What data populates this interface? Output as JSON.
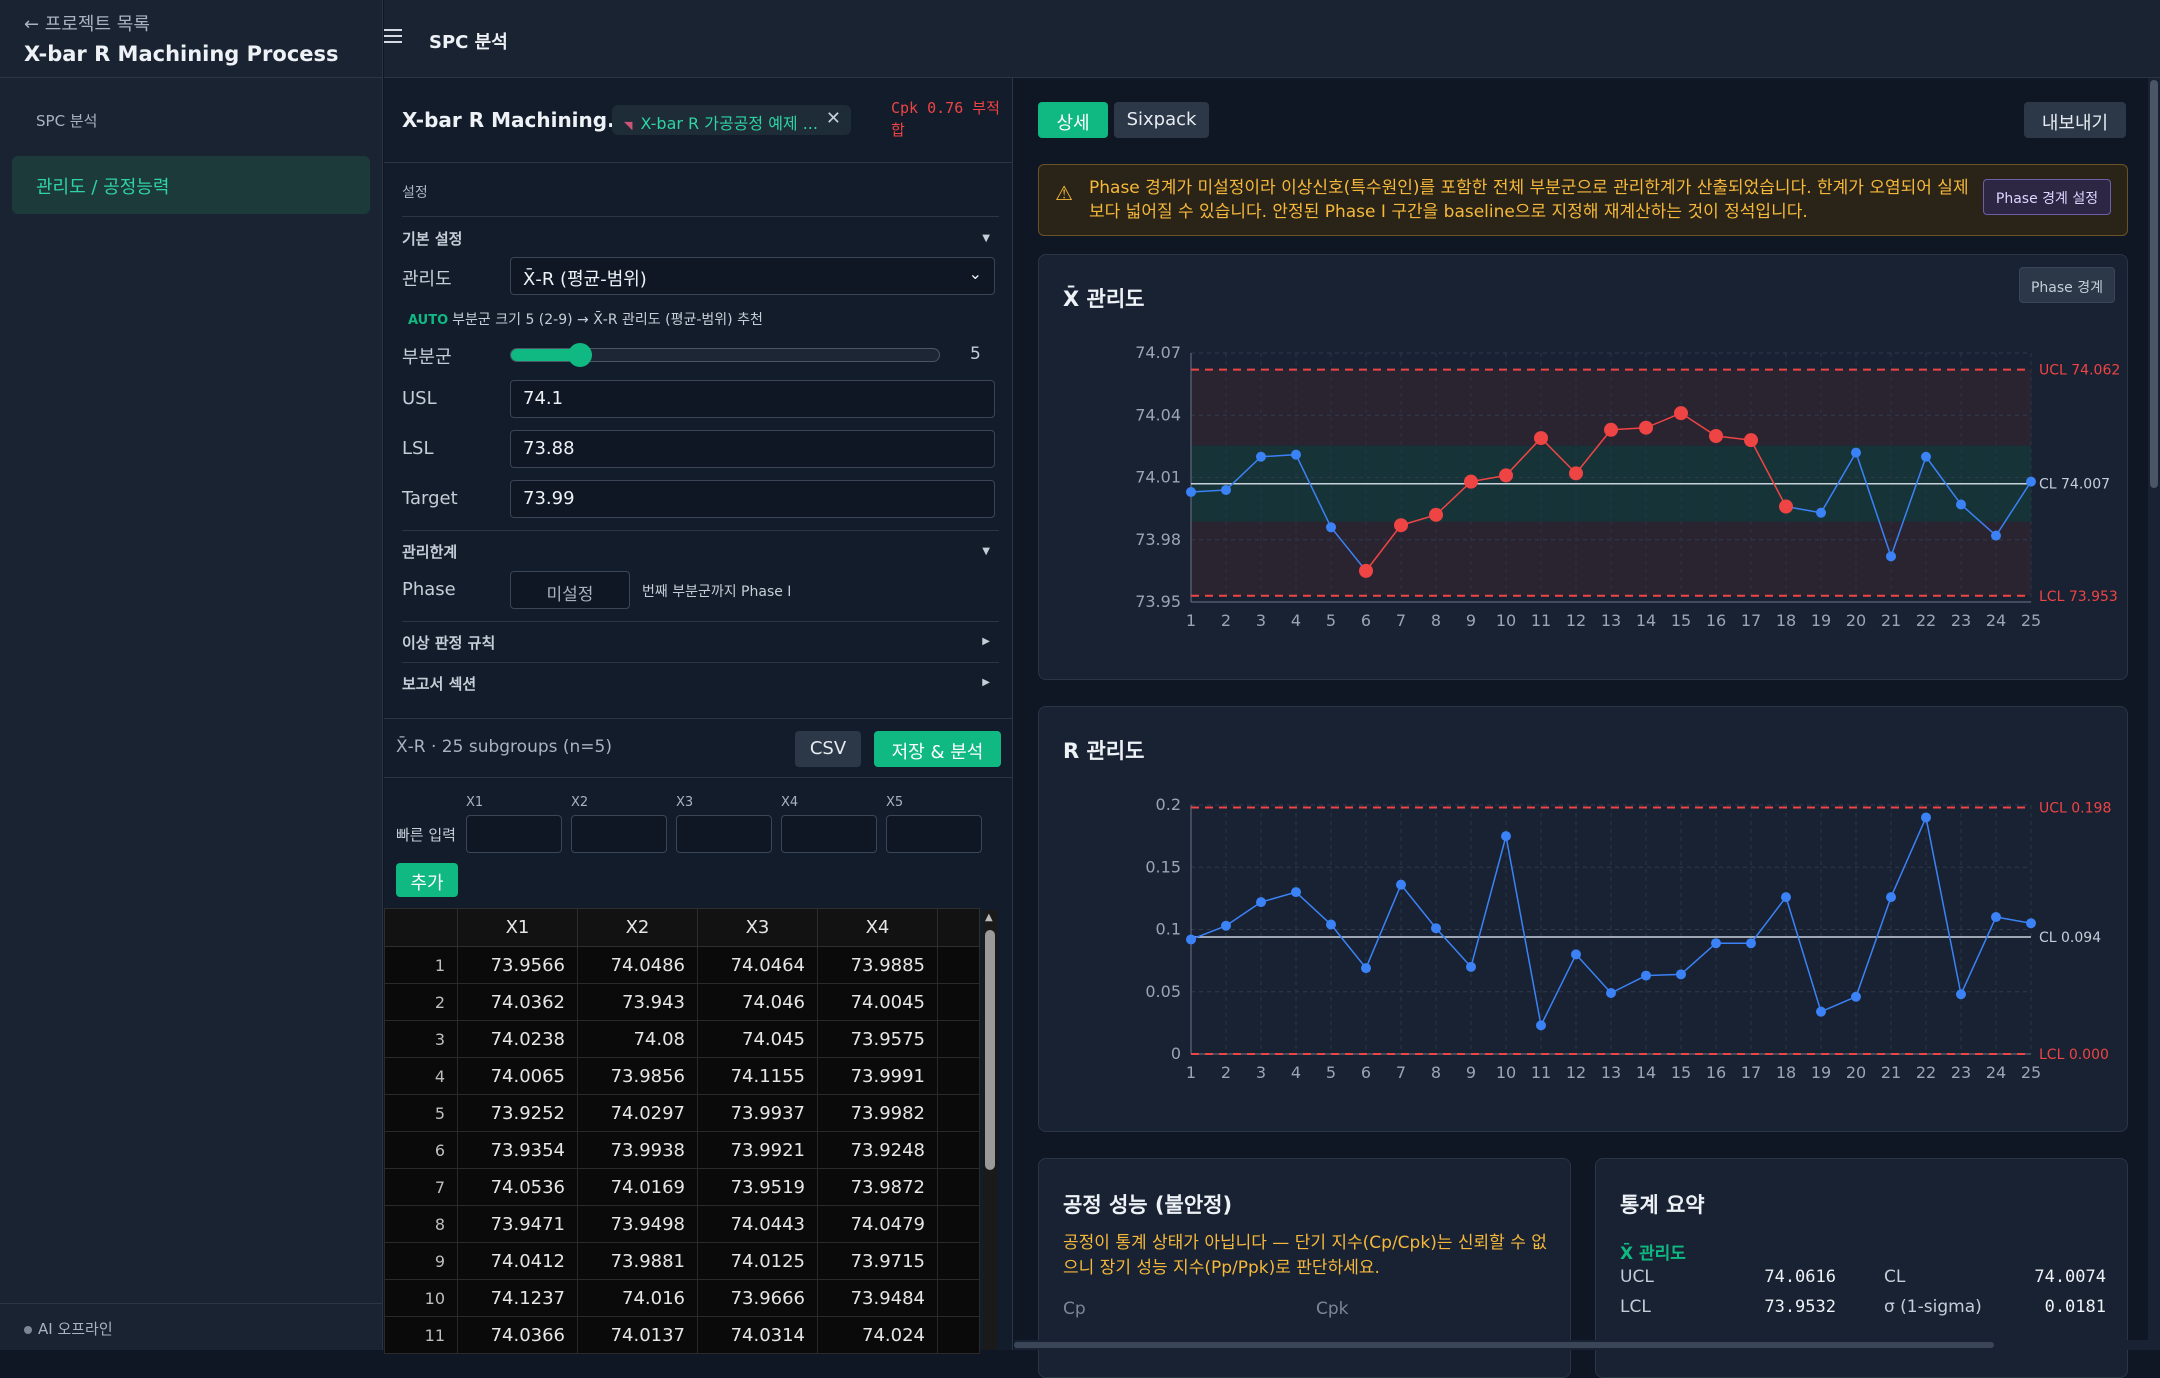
{
  "sidebar": {
    "back_label": "← 프로젝트 목록",
    "project_title": "X-bar R Machining Process",
    "section_label": "SPC 분석",
    "active_item": "관리도 / 공정능력",
    "ai_status": "AI 오프라인"
  },
  "topbar": {
    "title": "SPC 분석",
    "menu_icon": "hamburger-icon"
  },
  "config": {
    "dataset_title": "X-bar R Machining...",
    "dataset_chip": "X-bar R 가공공정 예제 ...",
    "cpk_badge": "Cpk 0.76 부적합",
    "settings_label": "설정",
    "basic_settings": "기본 설정",
    "chart_label": "관리도",
    "chart_value": "X̄-R (평균-범위)",
    "auto_tag": "AUTO",
    "auto_text": "부분군 크기 5 (2-9) → X̄-R 관리도 (평균-범위) 추천",
    "subgroup_label": "부분군",
    "subgroup_value": "5",
    "subgroup_fraction": 0.16,
    "usl_label": "USL",
    "usl_value": "74.1",
    "lsl_label": "LSL",
    "lsl_value": "73.88",
    "target_label": "Target",
    "target_value": "73.99",
    "limits_label": "관리한계",
    "phase_label": "Phase",
    "phase_placeholder": "미설정",
    "phase_suffix": "번째 부분군까지 Phase I",
    "rules_label": "이상 판정 규칙",
    "report_label": "보고서 섹션"
  },
  "data": {
    "info": "X̄-R · 25 subgroups (n=5)",
    "csv_button": "CSV",
    "save_button": "저장 & 분석",
    "quick_label": "빠른 입력",
    "quick_fields": [
      "X1",
      "X2",
      "X3",
      "X4",
      "X5"
    ],
    "add_button": "추가",
    "columns": [
      "X1",
      "X2",
      "X3",
      "X4"
    ],
    "rows": [
      [
        "1",
        "73.9566",
        "74.0486",
        "74.0464",
        "73.9885"
      ],
      [
        "2",
        "74.0362",
        "73.943",
        "74.046",
        "74.0045"
      ],
      [
        "3",
        "74.0238",
        "74.08",
        "74.045",
        "73.9575"
      ],
      [
        "4",
        "74.0065",
        "73.9856",
        "74.1155",
        "73.9991"
      ],
      [
        "5",
        "73.9252",
        "74.0297",
        "73.9937",
        "73.9982"
      ],
      [
        "6",
        "73.9354",
        "73.9938",
        "73.9921",
        "73.9248"
      ],
      [
        "7",
        "74.0536",
        "74.0169",
        "73.9519",
        "73.9872"
      ],
      [
        "8",
        "73.9471",
        "73.9498",
        "74.0443",
        "74.0479"
      ],
      [
        "9",
        "74.0412",
        "73.9881",
        "74.0125",
        "73.9715"
      ],
      [
        "10",
        "74.1237",
        "74.016",
        "73.9666",
        "73.9484"
      ],
      [
        "11",
        "74.0366",
        "74.0137",
        "74.0314",
        "74.024"
      ]
    ]
  },
  "content": {
    "tab_detail": "상세",
    "tab_sixpack": "Sixpack",
    "export_button": "내보내기",
    "warning_text": "Phase 경계가 미설정이라 이상신호(특수원인)를 포함한 전체 부분군으로 관리한계가 산출되었습니다. 한계가 오염되어 실제보다 넓어질 수 있습니다. 안정된 Phase I 구간을 baseline으로 지정해 재계산하는 것이 정석입니다.",
    "warning_button": "Phase 경계 설정",
    "xbar_title": "X̄ 관리도",
    "phase_button": "Phase 경계",
    "r_title": "R 관리도",
    "perf_title": "공정 성능 (불안정)",
    "perf_note": "공정이 통계 상태가 아닙니다 — 단기 지수(Cp/Cpk)는 신뢰할 수 없으니 장기 성능 지수(Pp/Ppk)로 판단하세요.",
    "cp_label": "Cp",
    "cpk_label": "Cpk",
    "stats_title": "통계 요약",
    "stats_sub": "X̄ 관리도",
    "ucl_label": "UCL",
    "ucl_value": "74.0616",
    "cl_label": "CL",
    "cl_value": "74.0074",
    "lcl_label": "LCL",
    "lcl_value": "73.9532",
    "sigma_label": "σ (1-sigma)",
    "sigma_value": "0.0181"
  },
  "colors": {
    "accent": "#10b981",
    "out_of_control": "#ef4444",
    "series": "#3b82f6",
    "warning": "#f5b83a"
  },
  "chart_data": [
    {
      "type": "line",
      "title": "X̄ 관리도",
      "x": [
        1,
        2,
        3,
        4,
        5,
        6,
        7,
        8,
        9,
        10,
        11,
        12,
        13,
        14,
        15,
        16,
        17,
        18,
        19,
        20,
        21,
        22,
        23,
        24,
        25
      ],
      "series": [
        {
          "values": [
            74.003,
            74.004,
            74.02,
            74.021,
            73.986,
            73.965,
            73.987,
            73.992,
            74.008,
            74.011,
            74.029,
            74.012,
            74.033,
            74.034,
            74.041,
            74.03,
            74.028,
            73.996,
            73.993,
            74.022,
            73.972,
            74.02,
            73.997,
            73.982,
            74.008
          ]
        }
      ],
      "out_of_control": [
        6,
        7,
        8,
        9,
        10,
        11,
        12,
        13,
        14,
        15,
        16,
        17,
        18
      ],
      "ucl": 74.062,
      "cl": 74.007,
      "lcl": 73.953,
      "ucl_label": "UCL 74.062",
      "cl_label": "CL 74.007",
      "lcl_label": "LCL 73.953",
      "ylim": [
        73.95,
        74.07
      ],
      "yticks": [
        "74.07",
        "74.04",
        "74.01",
        "73.98",
        "73.95"
      ],
      "grid": true
    },
    {
      "type": "line",
      "title": "R 관리도",
      "x": [
        1,
        2,
        3,
        4,
        5,
        6,
        7,
        8,
        9,
        10,
        11,
        12,
        13,
        14,
        15,
        16,
        17,
        18,
        19,
        20,
        21,
        22,
        23,
        24,
        25
      ],
      "series": [
        {
          "values": [
            0.092,
            0.103,
            0.122,
            0.13,
            0.104,
            0.069,
            0.136,
            0.101,
            0.07,
            0.175,
            0.023,
            0.08,
            0.049,
            0.063,
            0.064,
            0.089,
            0.089,
            0.126,
            0.034,
            0.046,
            0.126,
            0.19,
            0.048,
            0.11,
            0.105
          ]
        }
      ],
      "ucl": 0.198,
      "cl": 0.094,
      "lcl": 0.0,
      "ucl_label": "UCL 0.198",
      "cl_label": "CL 0.094",
      "lcl_label": "LCL 0.000",
      "ylim": [
        0,
        0.2
      ],
      "yticks": [
        "0.2",
        "0.15",
        "0.1",
        "0.05",
        "0"
      ],
      "grid": true
    }
  ]
}
